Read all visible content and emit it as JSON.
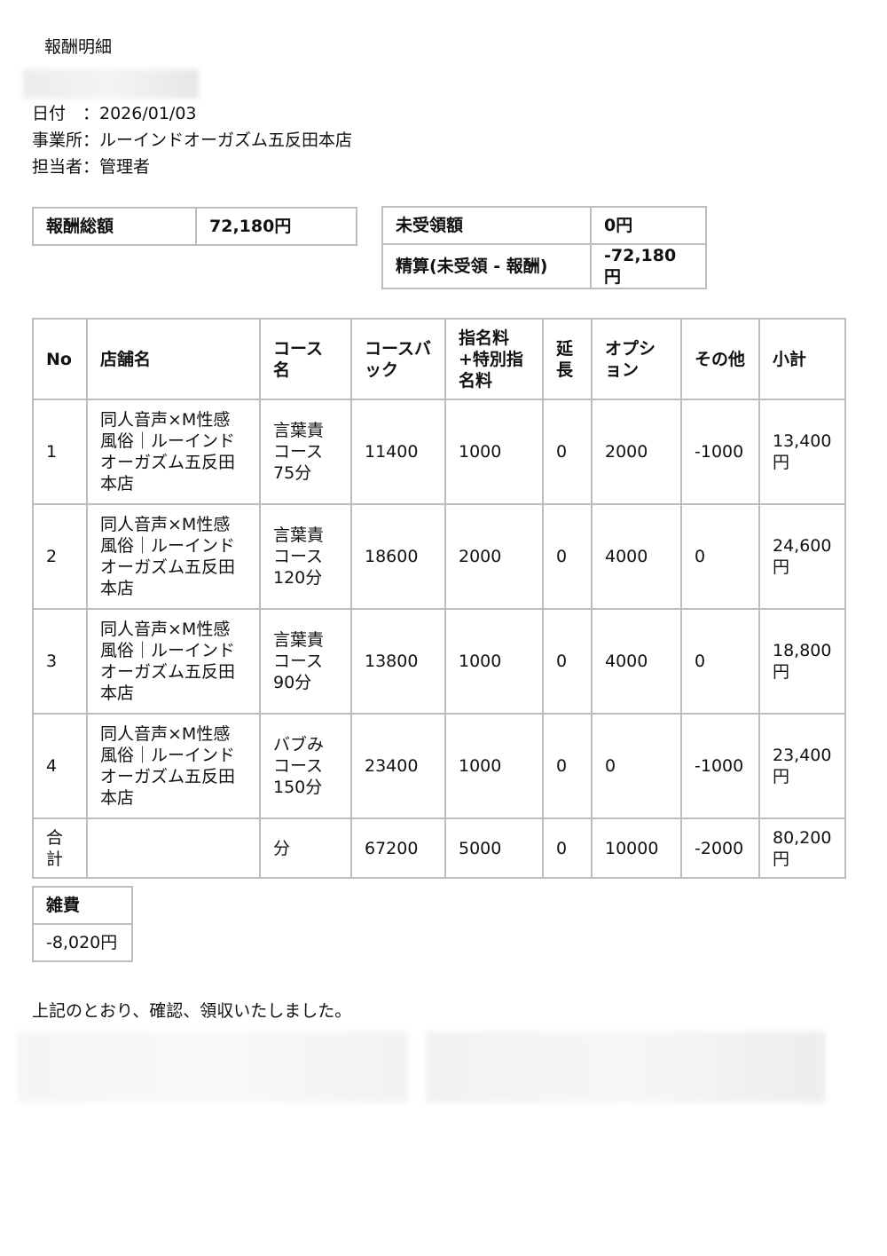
{
  "title": "報酬明細",
  "meta": {
    "date": "日付　：2026/01/03",
    "office": "事業所：ルーインドオーガズム五反田本店",
    "staff": "担当者：管理者"
  },
  "summary_left": {
    "label": "報酬総額",
    "value": "72,180円"
  },
  "summary_right": [
    {
      "label": "未受領額",
      "value": "0円"
    },
    {
      "label": "精算(未受領 - 報酬)",
      "value": "-72,180円"
    }
  ],
  "table": {
    "headers": [
      "No",
      "店舗名",
      "コース名",
      "コースバック",
      "指名料+特別指名料",
      "延長",
      "オプション",
      "その他",
      "小計"
    ],
    "rows": [
      [
        "1",
        "同人音声×M性感風俗｜ルーインドオーガズム五反田本店",
        "言葉責コース75分",
        "11400",
        "1000",
        "0",
        "2000",
        "-1000",
        "13,400円"
      ],
      [
        "2",
        "同人音声×M性感風俗｜ルーインドオーガズム五反田本店",
        "言葉責コース120分",
        "18600",
        "2000",
        "0",
        "4000",
        "0",
        "24,600円"
      ],
      [
        "3",
        "同人音声×M性感風俗｜ルーインドオーガズム五反田本店",
        "言葉責コース90分",
        "13800",
        "1000",
        "0",
        "4000",
        "0",
        "18,800円"
      ],
      [
        "4",
        "同人音声×M性感風俗｜ルーインドオーガズム五反田本店",
        "バブみコース150分",
        "23400",
        "1000",
        "0",
        "0",
        "-1000",
        "23,400円"
      ]
    ],
    "total": [
      "合計",
      "",
      "分",
      "67200",
      "5000",
      "0",
      "10000",
      "-2000",
      "80,200円"
    ]
  },
  "misc": {
    "label": "雑費",
    "value": "-8,020円"
  },
  "closing": "上記のとおり、確認、領収いたしました。"
}
